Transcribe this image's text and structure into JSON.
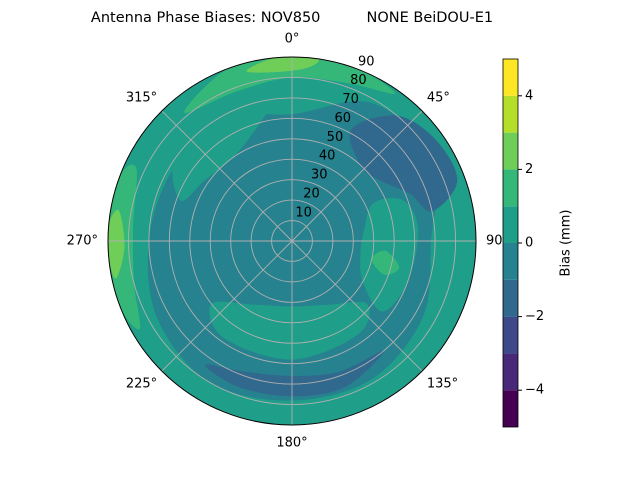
{
  "chart_data": {
    "type": "polar_contour",
    "title": "Antenna Phase Biases: NOV850          NONE BeiDOU-E1",
    "rlim": [
      0,
      90
    ],
    "rticks": [
      10,
      20,
      30,
      40,
      50,
      60,
      70,
      80,
      90
    ],
    "thetaticks": [
      {
        "value": 0,
        "label": "0°"
      },
      {
        "value": 45,
        "label": "45°"
      },
      {
        "value": 90,
        "label": "90"
      },
      {
        "value": 135,
        "label": "135°"
      },
      {
        "value": 180,
        "label": "180°"
      },
      {
        "value": 225,
        "label": "225°"
      },
      {
        "value": 270,
        "label": "270°"
      },
      {
        "value": 315,
        "label": "315°"
      }
    ],
    "grid": true,
    "levels": [
      -5,
      -4,
      -3,
      -2,
      -1,
      0,
      1,
      2,
      3,
      4,
      5
    ],
    "colors": [
      "#440154",
      "#482878",
      "#3e4989",
      "#31688e",
      "#26828e",
      "#1f9e89",
      "#35b779",
      "#6ece58",
      "#b5de2b",
      "#fde725"
    ],
    "background_level": 0,
    "regions": [
      {
        "level": -1,
        "theta": [
          0,
          30,
          60,
          90,
          120,
          150,
          180,
          210,
          240,
          270,
          300,
          330
        ],
        "r": [
          62,
          78,
          80,
          68,
          74,
          78,
          78,
          80,
          76,
          70,
          68,
          70
        ]
      },
      {
        "level": -2,
        "theta": [
          28,
          40,
          55,
          70,
          78,
          68,
          55,
          42
        ],
        "r": [
          62,
          80,
          86,
          86,
          70,
          62,
          52,
          50
        ]
      },
      {
        "level": -2,
        "theta": [
          140,
          160,
          180,
          200,
          215,
          200,
          180,
          160
        ],
        "r": [
          70,
          68,
          66,
          68,
          74,
          76,
          76,
          76
        ]
      },
      {
        "level": 0,
        "theta": [
          130,
          150,
          180,
          210,
          232,
          215,
          180,
          145
        ],
        "r": [
          48,
          36,
          32,
          36,
          50,
          58,
          58,
          56
        ]
      },
      {
        "level": 0,
        "theta": [
          65,
          80,
          100,
          120,
          128,
          110,
          85,
          70
        ],
        "r": [
          44,
          36,
          34,
          40,
          56,
          60,
          62,
          58
        ]
      },
      {
        "level": 0,
        "theta": [
          290,
          305,
          325,
          345,
          350,
          330,
          305
        ],
        "r": [
          58,
          52,
          50,
          60,
          68,
          72,
          70
        ]
      },
      {
        "level": 1,
        "theta": [
          96,
          103,
          110,
          104
        ],
        "r": [
          46,
          40,
          48,
          54
        ]
      },
      {
        "level": 1,
        "theta": [
          240,
          255,
          275,
          295,
          290,
          270,
          250
        ],
        "r": [
          86,
          80,
          78,
          84,
          90,
          90,
          90
        ]
      },
      {
        "level": 1,
        "theta": [
          320,
          340,
          360,
          20,
          35,
          20,
          360,
          340
        ],
        "r": [
          82,
          78,
          80,
          82,
          88,
          90,
          90,
          90
        ]
      },
      {
        "level": 2,
        "theta": [
          258,
          268,
          280,
          275,
          265
        ],
        "r": [
          88,
          82,
          86,
          90,
          90
        ]
      },
      {
        "level": 2,
        "theta": [
          345,
          355,
          5,
          8,
          355
        ],
        "r": [
          86,
          83,
          85,
          90,
          90
        ]
      }
    ],
    "colorbar_label": "Bias (mm)",
    "cticks": [
      {
        "value": -4,
        "label": "−4"
      },
      {
        "value": -2,
        "label": "−2"
      },
      0,
      2,
      4
    ]
  }
}
